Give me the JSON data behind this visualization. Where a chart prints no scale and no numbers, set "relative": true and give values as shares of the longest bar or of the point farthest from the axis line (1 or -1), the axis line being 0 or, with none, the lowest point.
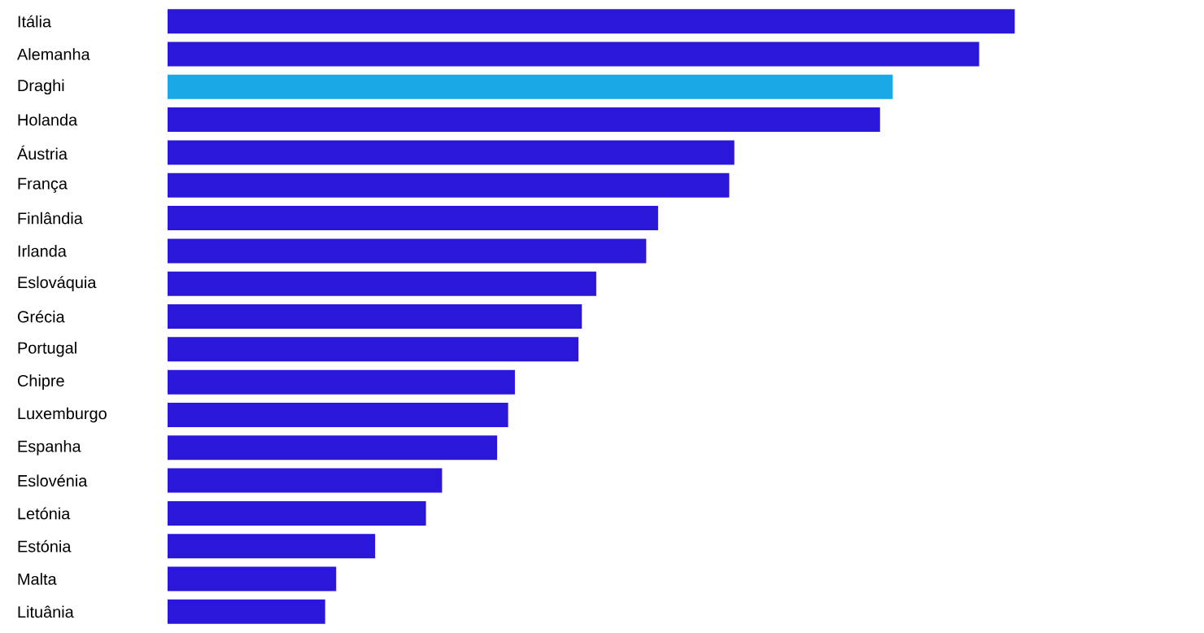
{
  "chart_data": {
    "type": "bar",
    "orientation": "horizontal",
    "relative": true,
    "categories": [
      "Itália",
      "Alemanha",
      "Draghi",
      "Holanda",
      "Áustria",
      "França",
      "Finlândia",
      "Irlanda",
      "Eslováquia",
      "Grécia",
      "Portugal",
      "Chipre",
      "Luxemburgo",
      "Espanha",
      "Eslovénia",
      "Letónia",
      "Estónia",
      "Malta",
      "Lituânia"
    ],
    "values": [
      1,
      0.958,
      0.856,
      0.841,
      0.669,
      0.663,
      0.579,
      0.565,
      0.506,
      0.489,
      0.485,
      0.41,
      0.402,
      0.389,
      0.324,
      0.305,
      0.245,
      0.199,
      0.186
    ],
    "colors": [
      "#2b17d9",
      "#2b17d9",
      "#1ba8e6",
      "#2b17d9",
      "#2b17d9",
      "#2b17d9",
      "#2b17d9",
      "#2b17d9",
      "#2b17d9",
      "#2b17d9",
      "#2b17d9",
      "#2b17d9",
      "#2b17d9",
      "#2b17d9",
      "#2b17d9",
      "#2b17d9",
      "#2b17d9",
      "#2b17d9",
      "#2b17d9"
    ]
  }
}
